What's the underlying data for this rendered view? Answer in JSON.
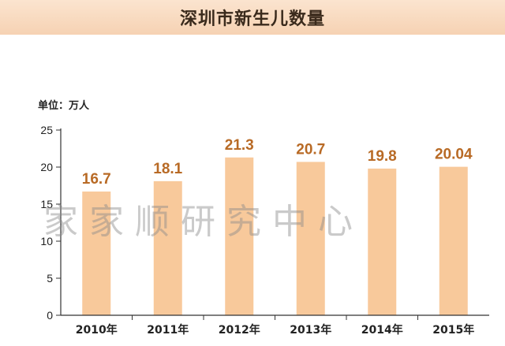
{
  "title": "深圳市新生儿数量",
  "watermark": "家家顺研究中心",
  "colors": {
    "bar": "#f8c99b",
    "data_label": "#b86a25",
    "axis": "#333333",
    "title_bg": "#f8dcc4"
  },
  "chart_data": {
    "type": "bar",
    "title": "深圳市新生儿数量",
    "unit": "单位：万人",
    "categories": [
      "2010年",
      "2011年",
      "2012年",
      "2013年",
      "2014年",
      "2015年"
    ],
    "values": [
      16.7,
      18.1,
      21.3,
      20.7,
      19.8,
      20.04
    ],
    "value_labels": [
      "16.7",
      "18.1",
      "21.3",
      "20.7",
      "19.8",
      "20.04"
    ],
    "ylim": [
      0,
      25
    ],
    "yticks": [
      "0",
      "5",
      "10",
      "15",
      "20",
      "25"
    ],
    "grid": false,
    "legend": "none"
  }
}
